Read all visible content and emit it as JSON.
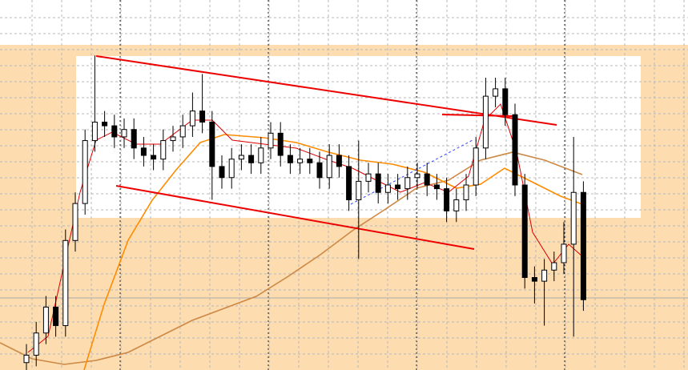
{
  "chart_data": {
    "type": "candlestick",
    "open": [
      2,
      4,
      10,
      17,
      12,
      35,
      45,
      62,
      67,
      66,
      63,
      65,
      60,
      58,
      57,
      62,
      63,
      66,
      70,
      67,
      55,
      52,
      57,
      58,
      56,
      60,
      64,
      58,
      56,
      57,
      56,
      52,
      58,
      55,
      46,
      51,
      53,
      48,
      50,
      49,
      52,
      53,
      50,
      49,
      43,
      46,
      50,
      60,
      74,
      76,
      69,
      50,
      25,
      24,
      27,
      29,
      34,
      48
    ],
    "high": [
      7,
      13,
      20,
      20,
      38,
      48,
      65,
      85,
      70,
      69,
      68,
      68,
      63,
      61,
      65,
      66,
      69,
      75,
      80,
      70,
      58,
      60,
      61,
      61,
      63,
      67,
      67,
      61,
      60,
      60,
      59,
      61,
      61,
      58,
      62,
      56,
      56,
      53,
      53,
      55,
      56,
      56,
      53,
      52,
      49,
      53,
      63,
      79,
      79,
      79,
      72,
      53,
      28,
      30,
      32,
      40,
      63,
      51
    ],
    "low": [
      0,
      1,
      7,
      9,
      9,
      32,
      42,
      59,
      63,
      60,
      60,
      57,
      55,
      54,
      54,
      59,
      60,
      63,
      64,
      46,
      49,
      49,
      54,
      53,
      53,
      57,
      55,
      53,
      53,
      53,
      49,
      49,
      52,
      43,
      30,
      48,
      45,
      45,
      46,
      46,
      49,
      47,
      46,
      40,
      40,
      43,
      47,
      57,
      71,
      66,
      47,
      22,
      18,
      12,
      24,
      26,
      9,
      16
    ],
    "close": [
      4,
      10,
      17,
      12,
      35,
      45,
      62,
      67,
      66,
      63,
      65,
      60,
      58,
      57,
      62,
      63,
      66,
      70,
      67,
      55,
      52,
      57,
      58,
      56,
      60,
      64,
      58,
      56,
      57,
      56,
      52,
      58,
      55,
      46,
      51,
      53,
      48,
      50,
      49,
      52,
      53,
      50,
      49,
      43,
      46,
      50,
      60,
      74,
      76,
      69,
      50,
      25,
      24,
      27,
      29,
      34,
      48,
      19
    ],
    "ylim": [
      0,
      100
    ]
  }
}
